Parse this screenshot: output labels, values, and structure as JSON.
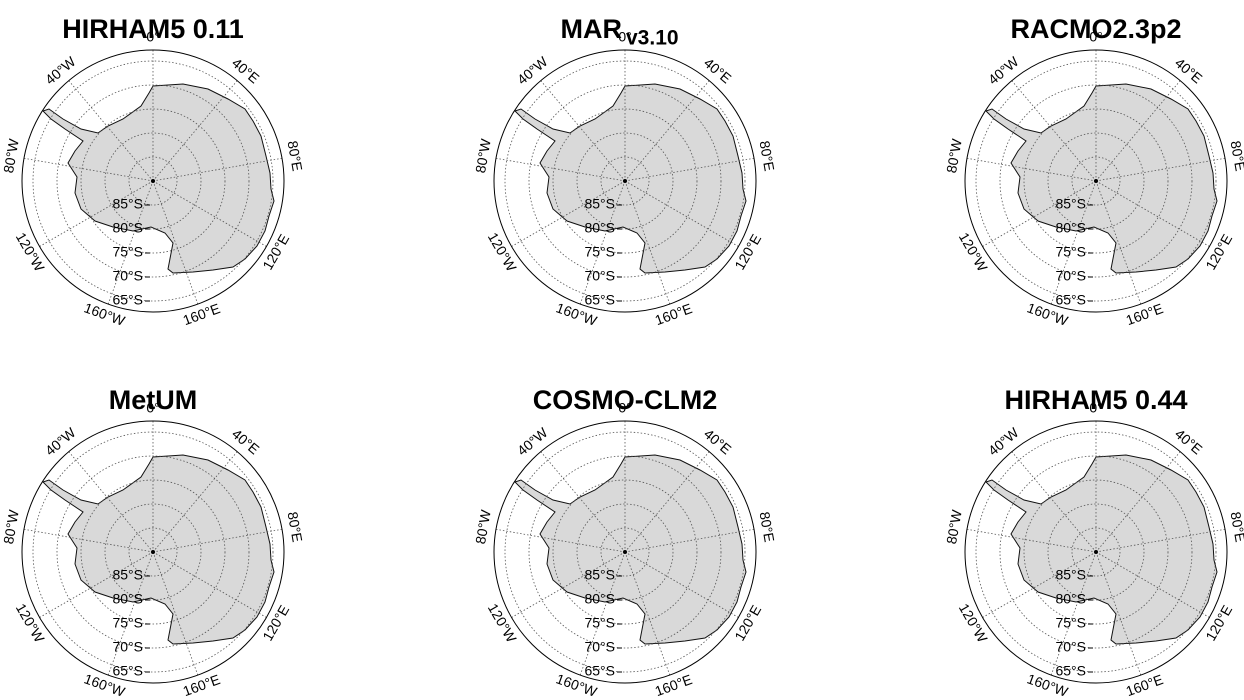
{
  "panels": [
    {
      "title": "HIRHAM5 0.11"
    },
    {
      "title": "MAR",
      "subtitle": "v3.10"
    },
    {
      "title": "RACMO2.3p2"
    },
    {
      "title": "MetUM"
    },
    {
      "title": "COSMO-CLM2"
    },
    {
      "title": "HIRHAM5 0.44"
    }
  ],
  "longitude_labels": [
    "0°",
    "40°E",
    "80°E",
    "120°E",
    "160°E",
    "160°W",
    "120°W",
    "80°W",
    "40°W"
  ],
  "latitude_labels": [
    "85°S",
    "80°S",
    "75°S",
    "70°S",
    "65°S"
  ]
}
